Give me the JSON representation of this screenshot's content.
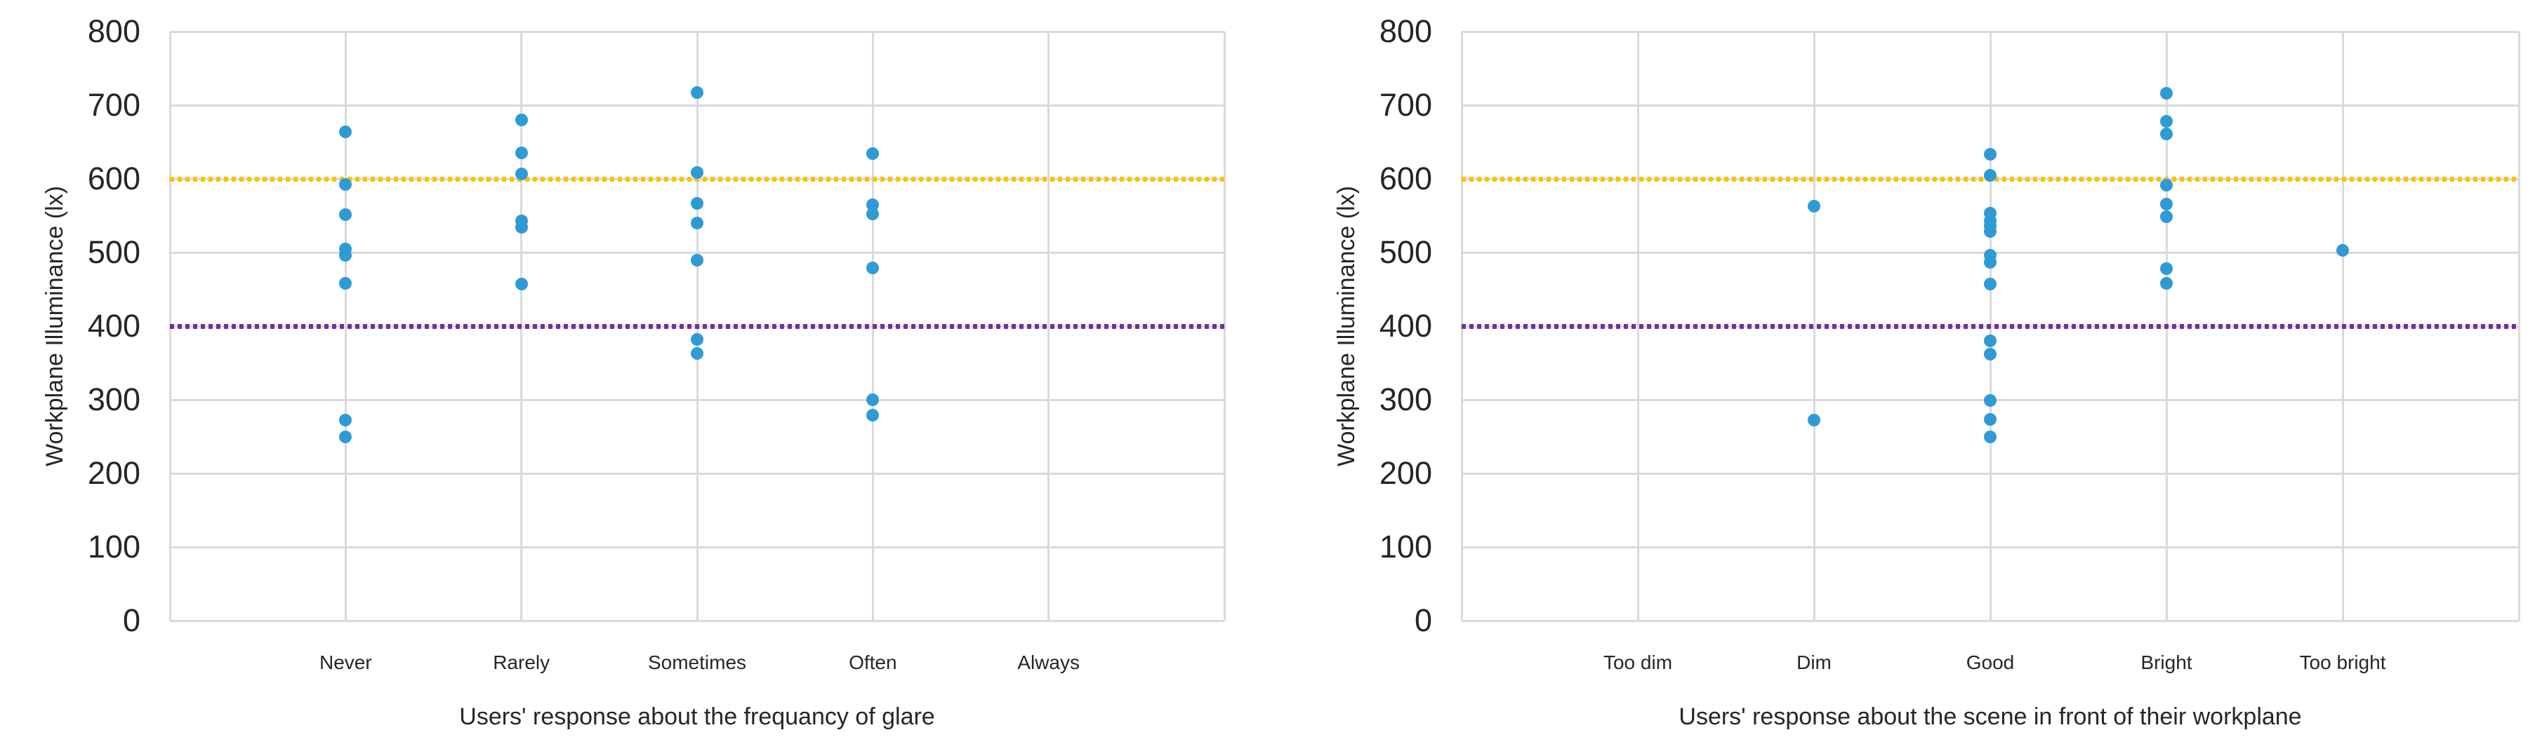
{
  "colors": {
    "point": "#2E9BD5",
    "gridline": "#DADADA",
    "reference_600": "#FFC000",
    "reference_400": "#7030A0",
    "text": "#262626"
  },
  "chart_data": [
    {
      "type": "scatter",
      "title": "",
      "xlabel": "Users' response about the frequancy of glare",
      "ylabel": "Workplane Illuminance (lx)",
      "ylim": [
        0,
        800
      ],
      "ytick_interval": 100,
      "ytick_labels": [
        "0",
        "100",
        "200",
        "300",
        "400",
        "500",
        "600",
        "700",
        "800"
      ],
      "grid": true,
      "legend": "none",
      "categories": [
        "Never",
        "Rarely",
        "Sometimes",
        "Often",
        "Always"
      ],
      "series": [
        {
          "category": "Never",
          "values": [
            664,
            592,
            551,
            505,
            496,
            458,
            272,
            250
          ]
        },
        {
          "category": "Rarely",
          "values": [
            680,
            635,
            607,
            543,
            534,
            457
          ]
        },
        {
          "category": "Sometimes",
          "values": [
            717,
            609,
            567,
            540,
            490,
            382,
            363
          ]
        },
        {
          "category": "Often",
          "values": [
            634,
            565,
            552,
            479,
            300,
            279
          ]
        },
        {
          "category": "Always",
          "values": []
        }
      ],
      "reference_lines": [
        {
          "y": 600,
          "color": "#FFC000",
          "style": "dotted",
          "name": "600-lx-reference"
        },
        {
          "y": 400,
          "color": "#7030A0",
          "style": "dotted",
          "name": "400-lx-reference"
        }
      ]
    },
    {
      "type": "scatter",
      "title": "",
      "xlabel": "Users' response about the scene in front of their workplane",
      "ylabel": "Workplane Illuminance (lx)",
      "ylim": [
        0,
        800
      ],
      "ytick_interval": 100,
      "ytick_labels": [
        "0",
        "100",
        "200",
        "300",
        "400",
        "500",
        "600",
        "700",
        "800"
      ],
      "grid": true,
      "legend": "none",
      "categories": [
        "Too dim",
        "Dim",
        "Good",
        "Bright",
        "Too bright"
      ],
      "series": [
        {
          "category": "Too dim",
          "values": []
        },
        {
          "category": "Dim",
          "values": [
            563,
            272
          ]
        },
        {
          "category": "Good",
          "values": [
            633,
            605,
            553,
            543,
            536,
            529,
            496,
            487,
            457,
            380,
            362,
            299,
            273,
            250
          ]
        },
        {
          "category": "Bright",
          "values": [
            716,
            678,
            661,
            591,
            566,
            549,
            478,
            458
          ]
        },
        {
          "category": "Too bright",
          "values": [
            503
          ]
        }
      ],
      "reference_lines": [
        {
          "y": 600,
          "color": "#FFC000",
          "style": "dotted",
          "name": "600-lx-reference"
        },
        {
          "y": 400,
          "color": "#7030A0",
          "style": "dotted",
          "name": "400-lx-reference"
        }
      ]
    }
  ]
}
